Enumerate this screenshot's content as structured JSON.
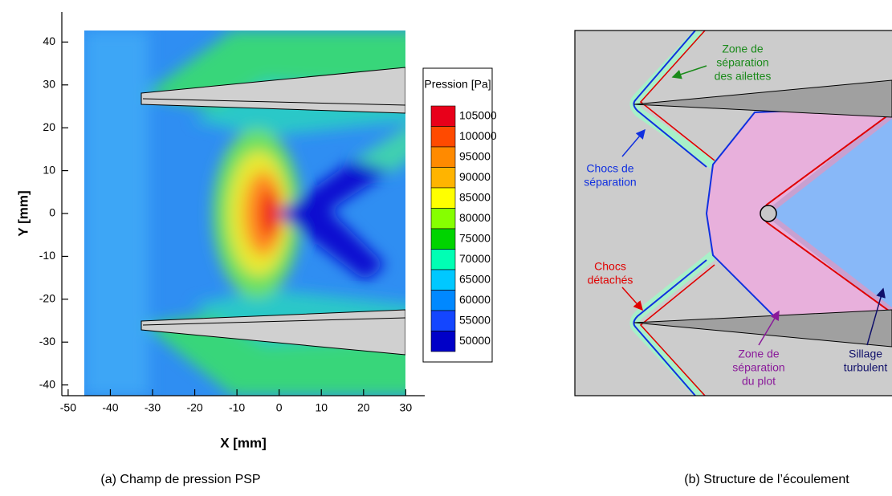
{
  "chart_data": {
    "type": "contour",
    "xlabel": "X [mm]",
    "ylabel": "Y [mm]",
    "xlim": [
      -51.5,
      34.5
    ],
    "ylim": [
      -42.5,
      47
    ],
    "xticks": [
      -50,
      -40,
      -30,
      -20,
      -10,
      0,
      10,
      20,
      30
    ],
    "yticks": [
      -40,
      -30,
      -20,
      -10,
      0,
      10,
      20,
      30,
      40
    ],
    "colorbar": {
      "title": "Pression [Pa]",
      "levels": [
        105000,
        100000,
        95000,
        90000,
        85000,
        80000,
        75000,
        70000,
        65000,
        60000,
        55000,
        50000
      ],
      "colors": [
        "#e8001a",
        "#ff4a00",
        "#ff8a00",
        "#ffb400",
        "#ffff00",
        "#86ff00",
        "#00d400",
        "#00ffb4",
        "#00c8ff",
        "#0088ff",
        "#1446ff",
        "#0000c8"
      ]
    },
    "caption": "(a)  Champ de pression PSP"
  },
  "diagram": {
    "labels": [
      {
        "lines": [
          "Zone de",
          "séparation",
          "des ailettes"
        ]
      },
      {
        "lines": [
          "Chocs de",
          "séparation"
        ]
      },
      {
        "lines": [
          "Chocs",
          "détachés"
        ]
      },
      {
        "lines": [
          "Zone de",
          "séparation",
          "du plot"
        ]
      },
      {
        "lines": [
          "Sillage",
          "turbulent"
        ]
      }
    ],
    "caption": "(b)  Structure de l’écoulement"
  }
}
